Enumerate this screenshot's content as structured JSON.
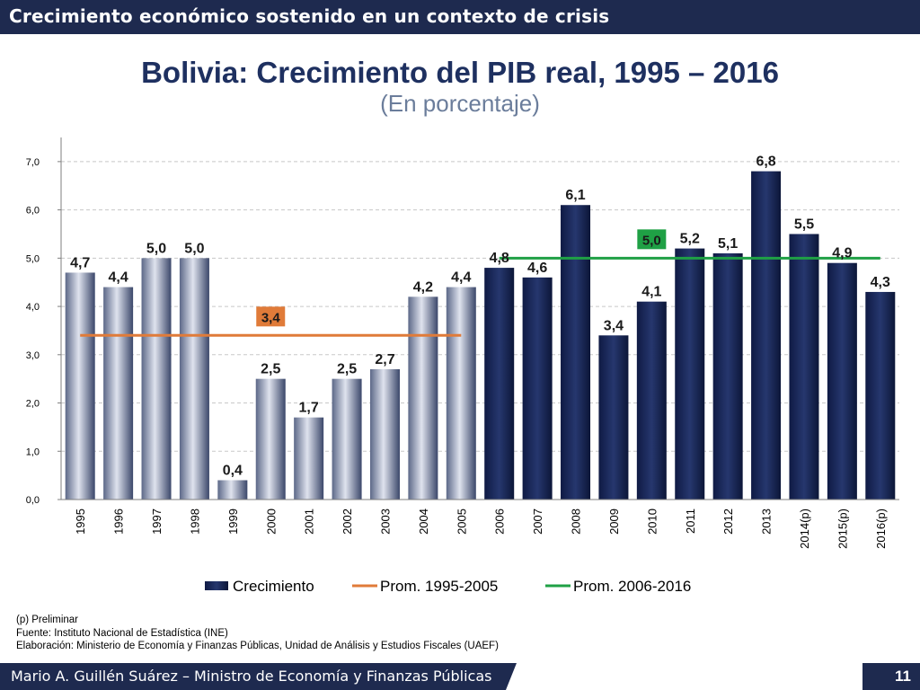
{
  "header": {
    "title": "Crecimiento económico sostenido en un contexto de crisis"
  },
  "chart_data": {
    "type": "bar",
    "title": "Bolivia: Crecimiento del PIB real, 1995 – 2016",
    "subtitle": "(En porcentaje)",
    "categories": [
      "1995",
      "1996",
      "1997",
      "1998",
      "1999",
      "2000",
      "2001",
      "2002",
      "2003",
      "2004",
      "2005",
      "2006",
      "2007",
      "2008",
      "2009",
      "2010",
      "2011",
      "2012",
      "2013",
      "2014(p)",
      "2015(p)",
      "2016(p)"
    ],
    "series": [
      {
        "name": "Crecimiento",
        "type": "bar",
        "values": [
          4.7,
          4.4,
          5.0,
          5.0,
          0.4,
          2.5,
          1.7,
          2.5,
          2.7,
          4.2,
          4.4,
          4.8,
          4.6,
          6.1,
          3.4,
          4.1,
          5.2,
          5.1,
          6.8,
          5.5,
          4.9,
          4.3
        ],
        "labels": [
          "4,7",
          "4,4",
          "5,0",
          "5,0",
          "0,4",
          "2,5",
          "1,7",
          "2,5",
          "2,7",
          "4,2",
          "4,4",
          "4,8",
          "4,6",
          "6,1",
          "3,4",
          "4,1",
          "5,2",
          "5,1",
          "6,8",
          "5,5",
          "4,9",
          "4,3"
        ]
      },
      {
        "name": "Prom. 1995-2005",
        "type": "line",
        "value": 3.4,
        "label": "3,4",
        "from": "1995",
        "to": "2005",
        "color": "#e07b39"
      },
      {
        "name": "Prom. 2006-2016",
        "type": "line",
        "value": 5.0,
        "label": "5,0",
        "from": "2006",
        "to": "2016(p)",
        "color": "#1fa045"
      }
    ],
    "ylim": [
      0,
      7.5
    ],
    "yticks": [
      "0,0",
      "1,0",
      "2,0",
      "3,0",
      "4,0",
      "5,0",
      "6,0",
      "7,0"
    ],
    "grid": true,
    "legend": "bottom",
    "colors": {
      "bar_period1": "#8a93ad",
      "bar_period2": "#17255a"
    }
  },
  "notes": [
    "(p) Preliminar",
    "Fuente: Instituto Nacional de Estadística (INE)",
    "Elaboración: Ministerio de Economía y Finanzas Públicas, Unidad de Análisis y Estudios Fiscales (UAEF)"
  ],
  "footer": {
    "author": "Mario A. Guillén Suárez – Ministro de Economía y Finanzas Públicas",
    "page": "11"
  }
}
